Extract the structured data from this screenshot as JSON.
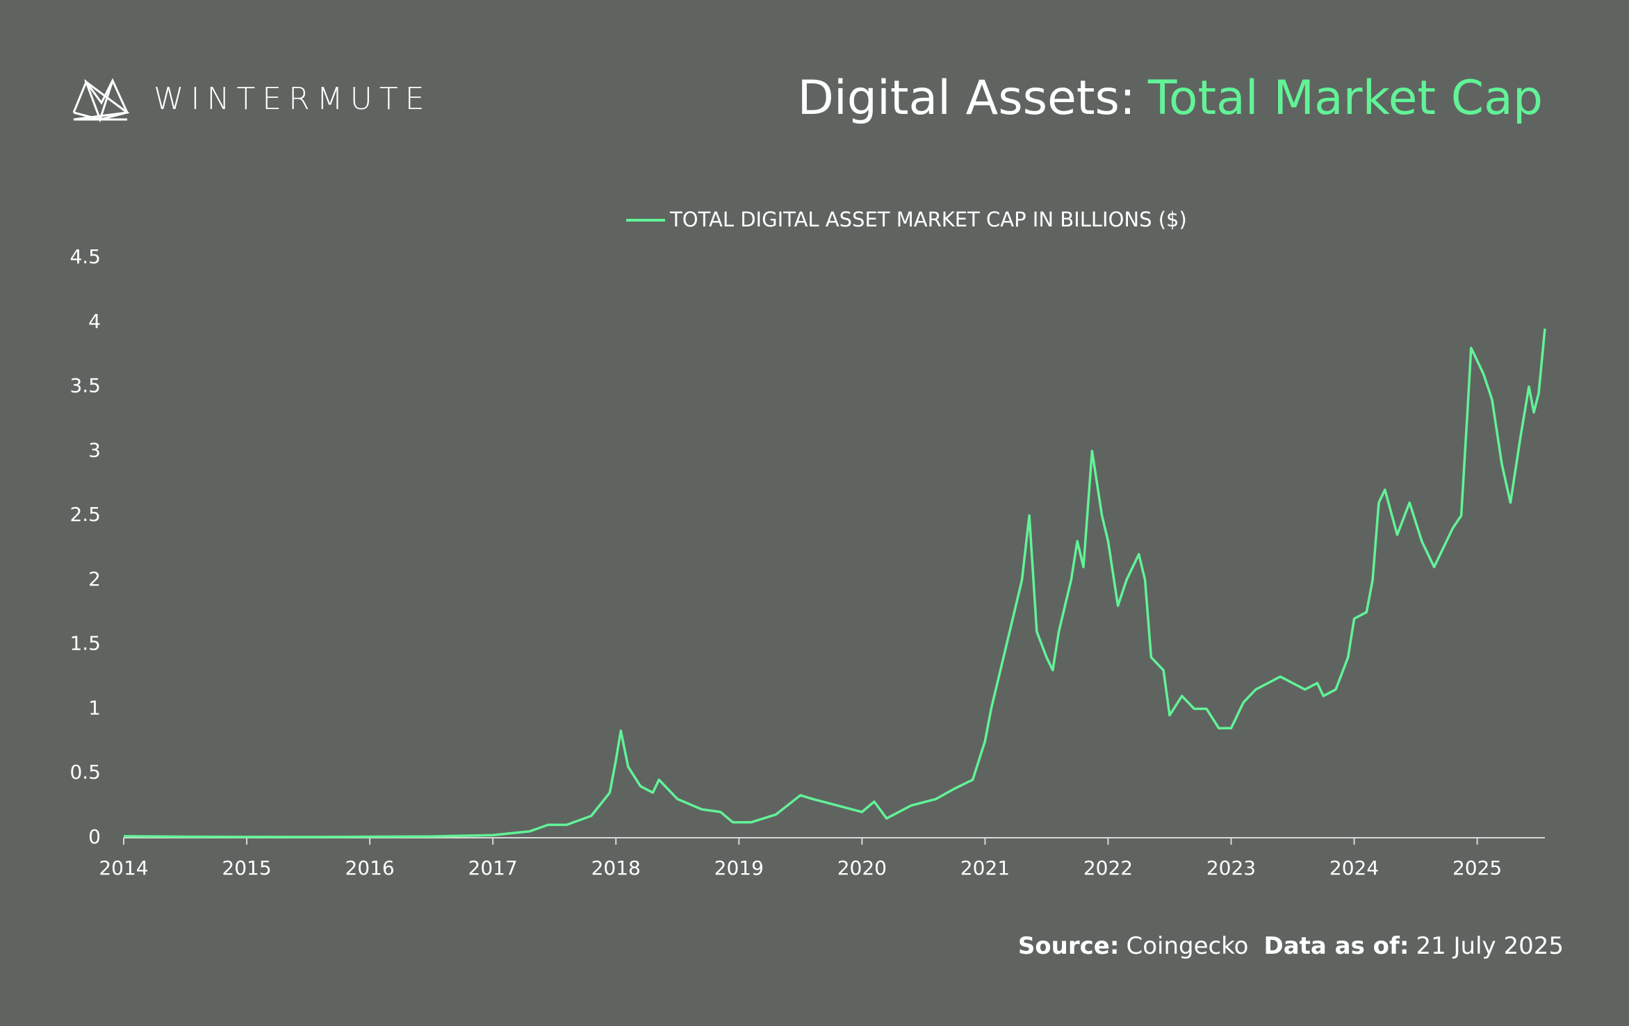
{
  "brand": "WINTERMUTE",
  "chart_data": {
    "type": "line",
    "title": "Digital Assets:",
    "title_highlight": "Total Market Cap",
    "source_label": "Source:",
    "source": "Coingecko",
    "date_label": "Data as of:",
    "date": "21 July 2025",
    "xlim": [
      2014,
      2025.55
    ],
    "xticks": [
      2014,
      2015,
      2016,
      2017,
      2018,
      2019,
      2020,
      2021,
      2022,
      2023,
      2024,
      2025
    ],
    "ylim": [
      0,
      4.5
    ],
    "yticks": [
      0,
      0.5,
      1,
      1.5,
      2,
      2.5,
      3,
      3.5,
      4,
      4.5
    ],
    "grid": false,
    "legend": "top",
    "x": [
      2014,
      2014.5,
      2015,
      2015.5,
      2016,
      2016.5,
      2017,
      2017.3,
      2017.45,
      2017.6,
      2017.8,
      2017.95,
      2018.0,
      2018.04,
      2018.1,
      2018.2,
      2018.3,
      2018.35,
      2018.5,
      2018.7,
      2018.85,
      2018.95,
      2019.1,
      2019.3,
      2019.5,
      2019.6,
      2019.8,
      2020.0,
      2020.1,
      2020.2,
      2020.4,
      2020.6,
      2020.75,
      2020.9,
      2021.0,
      2021.05,
      2021.15,
      2021.25,
      2021.3,
      2021.36,
      2021.42,
      2021.5,
      2021.55,
      2021.6,
      2021.7,
      2021.75,
      2021.8,
      2021.87,
      2021.95,
      2022.0,
      2022.08,
      2022.15,
      2022.25,
      2022.3,
      2022.35,
      2022.45,
      2022.5,
      2022.6,
      2022.7,
      2022.8,
      2022.9,
      2023.0,
      2023.1,
      2023.2,
      2023.3,
      2023.4,
      2023.5,
      2023.6,
      2023.7,
      2023.75,
      2023.85,
      2023.95,
      2024.0,
      2024.1,
      2024.15,
      2024.2,
      2024.25,
      2024.35,
      2024.45,
      2024.55,
      2024.65,
      2024.7,
      2024.8,
      2024.87,
      2024.92,
      2024.95,
      2025.05,
      2025.12,
      2025.2,
      2025.27,
      2025.35,
      2025.42,
      2025.46,
      2025.5,
      2025.55
    ],
    "series": [
      {
        "name": "TOTAL DIGITAL ASSET MARKET CAP IN BILLIONS ($)",
        "color": "#62f397",
        "values": [
          0.012,
          0.008,
          0.007,
          0.006,
          0.008,
          0.01,
          0.02,
          0.05,
          0.1,
          0.1,
          0.17,
          0.35,
          0.6,
          0.83,
          0.55,
          0.4,
          0.35,
          0.45,
          0.3,
          0.22,
          0.2,
          0.12,
          0.12,
          0.18,
          0.33,
          0.3,
          0.25,
          0.2,
          0.28,
          0.15,
          0.25,
          0.3,
          0.38,
          0.45,
          0.75,
          1.0,
          1.4,
          1.8,
          2.0,
          2.5,
          1.6,
          1.4,
          1.3,
          1.6,
          2.0,
          2.3,
          2.1,
          3.0,
          2.5,
          2.3,
          1.8,
          2.0,
          2.2,
          2.0,
          1.4,
          1.3,
          0.95,
          1.1,
          1.0,
          1.0,
          0.85,
          0.85,
          1.05,
          1.15,
          1.2,
          1.25,
          1.2,
          1.15,
          1.2,
          1.1,
          1.15,
          1.4,
          1.7,
          1.75,
          2.0,
          2.6,
          2.7,
          2.35,
          2.6,
          2.3,
          2.1,
          2.2,
          2.4,
          2.5,
          3.3,
          3.8,
          3.6,
          3.4,
          2.9,
          2.6,
          3.1,
          3.5,
          3.3,
          3.45,
          3.95
        ]
      }
    ]
  }
}
